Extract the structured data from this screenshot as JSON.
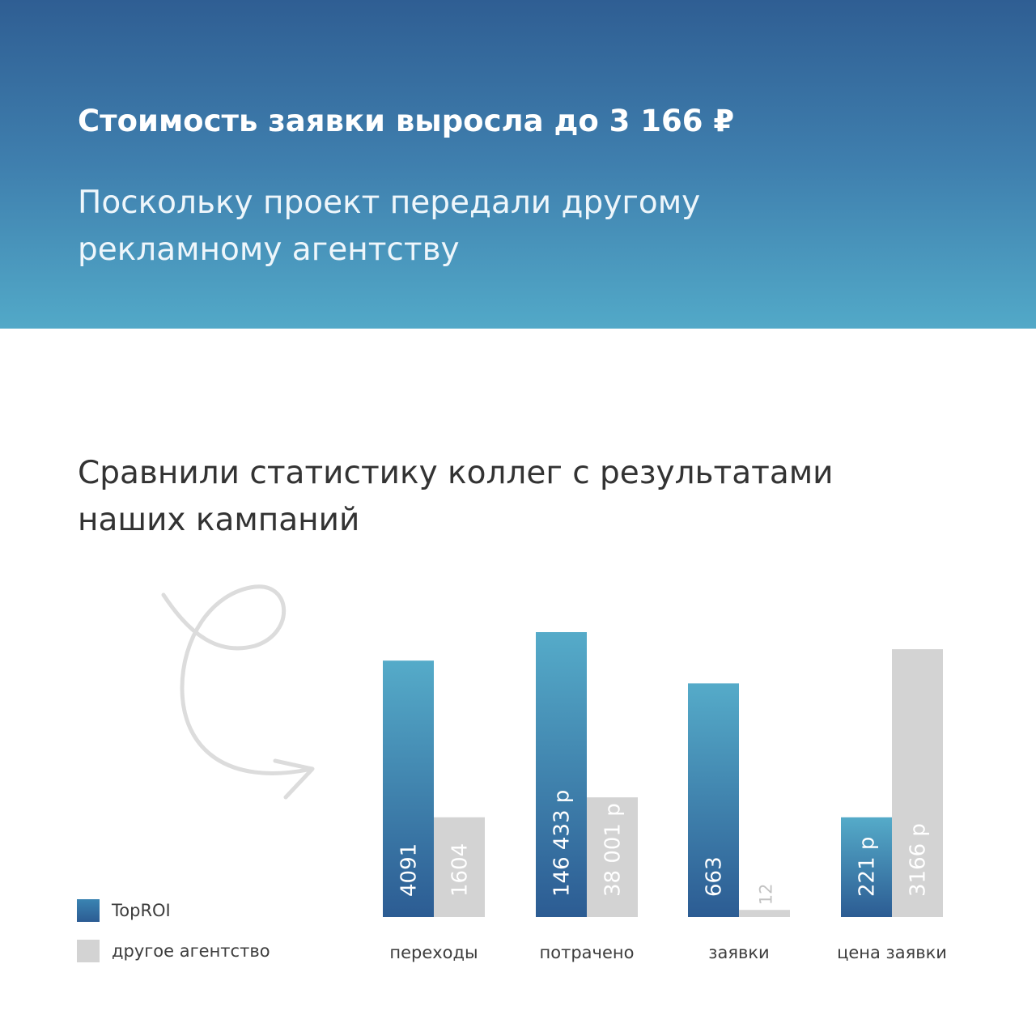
{
  "header": {
    "title": "Стоимость заявки выросла до 3 166 ₽",
    "subtitle": "Поскольку проект передали другому рекламному агентству"
  },
  "intro": "Сравнили статистику коллег с результатами наших кампаний",
  "decoration": {
    "icon": "curly-arrow-icon"
  },
  "colors": {
    "header_top": "#2f5e93",
    "header_bottom": "#52a9c8",
    "toproi_dark": "#2c5c93",
    "toproi_light": "#55abc9",
    "other": "#d3d3d3",
    "muted_text": "#c2c2c2"
  },
  "legend": [
    {
      "label": "TopROI"
    },
    {
      "label": "другое агентство"
    }
  ],
  "chart_data": {
    "type": "bar",
    "categories": [
      "переходы",
      "потрачено",
      "заявки",
      "цена заявки"
    ],
    "series": [
      {
        "name": "TopROI",
        "labels": [
          "4091",
          "146 433 р",
          "663",
          "221 р"
        ]
      },
      {
        "name": "другое агентство",
        "labels": [
          "1604",
          "38 001 р",
          "12",
          "3166 р"
        ]
      }
    ],
    "relative_heights": [
      [
        0.9,
        0.35
      ],
      [
        1.0,
        0.42
      ],
      [
        0.82,
        0.025
      ],
      [
        0.35,
        0.94
      ]
    ],
    "legend_position": "bottom-left",
    "grid": false
  }
}
